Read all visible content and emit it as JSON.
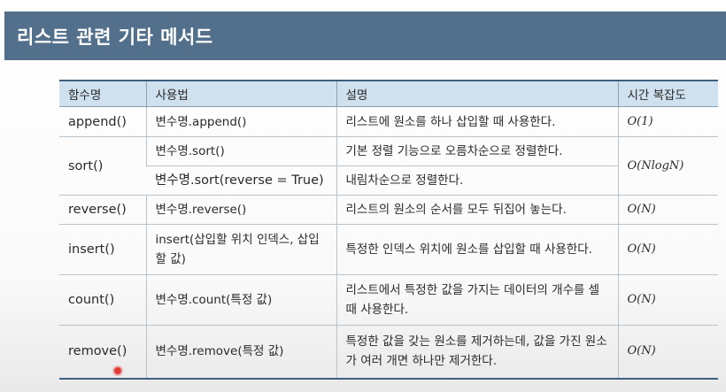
{
  "title": "리스트 관련 기타 메서드",
  "table": {
    "headers": [
      "함수명",
      "사용법",
      "설명",
      "시간 복잡도"
    ],
    "rows": {
      "append": {
        "func": "append()",
        "usage": "변수명.append()",
        "desc": "리스트에 원소를 하나 삽입할 때 사용한다.",
        "complexity": "O(1)"
      },
      "sort1": {
        "func": "sort()",
        "usage": "변수명.sort()",
        "desc": "기본 정렬 기능으로 오름차순으로 정렬한다.",
        "complexity": "O(NlogN)"
      },
      "sort2": {
        "usage": "변수명.sort(reverse = True)",
        "desc": "내림차순으로 정렬한다."
      },
      "reverse": {
        "func": "reverse()",
        "usage": "변수명.reverse()",
        "desc": "리스트의 원소의 순서를 모두 뒤집어 놓는다.",
        "complexity": "O(N)"
      },
      "insert": {
        "func": "insert()",
        "usage": "insert(삽입할 위치 인덱스, 삽입할 값)",
        "desc": "특정한 인덱스 위치에 원소를 삽입할 때 사용한다.",
        "complexity": "O(N)"
      },
      "count": {
        "func": "count()",
        "usage": "변수명.count(특정 값)",
        "desc": "리스트에서 특정한 값을 가지는 데이터의 개수를 셀 때 사용한다.",
        "complexity": "O(N)"
      },
      "remove": {
        "func": "remove()",
        "usage": "변수명.remove(특정 값)",
        "desc": "특정한 값을 갖는 원소를 제거하는데, 값을 가진 원소가 여러 개면 하나만 제거한다.",
        "complexity": "O(N)"
      }
    }
  },
  "colors": {
    "title_bg": "#526f8b",
    "header_bg": "#cfe0ee",
    "rule": "#3d5f80",
    "cursor": "#e53935"
  }
}
